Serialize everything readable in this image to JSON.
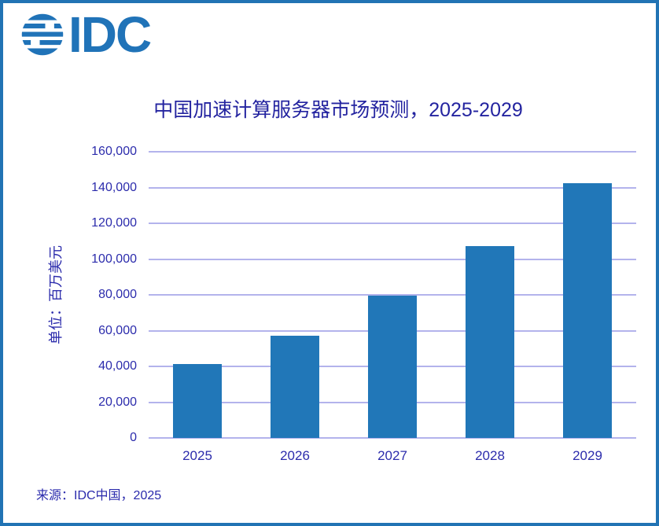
{
  "logo": {
    "text": "IDC",
    "color": "#2073B8"
  },
  "chart_data": {
    "type": "bar",
    "categories": [
      "2025",
      "2026",
      "2027",
      "2028",
      "2029"
    ],
    "values": [
      41200,
      57200,
      79400,
      107400,
      142400
    ],
    "title": "中国加速计算服务器市场预测，2025-2029",
    "xlabel": "",
    "ylabel": "单位：百万美元",
    "ylim": [
      0,
      160000
    ],
    "ytick_step": 20000,
    "yticks": [
      "0",
      "20,000",
      "40,000",
      "60,000",
      "80,000",
      "100,000",
      "120,000",
      "140,000",
      "160,000"
    ],
    "grid": true,
    "legend": "none",
    "bar_color": "#2177B8",
    "gridline_color": "#B3B3EC"
  },
  "source": {
    "text": "来源：IDC中国，2025"
  },
  "colors": {
    "border": "#2173B4",
    "title_text": "#2424A0",
    "axis_text": "#2C2CAC"
  }
}
